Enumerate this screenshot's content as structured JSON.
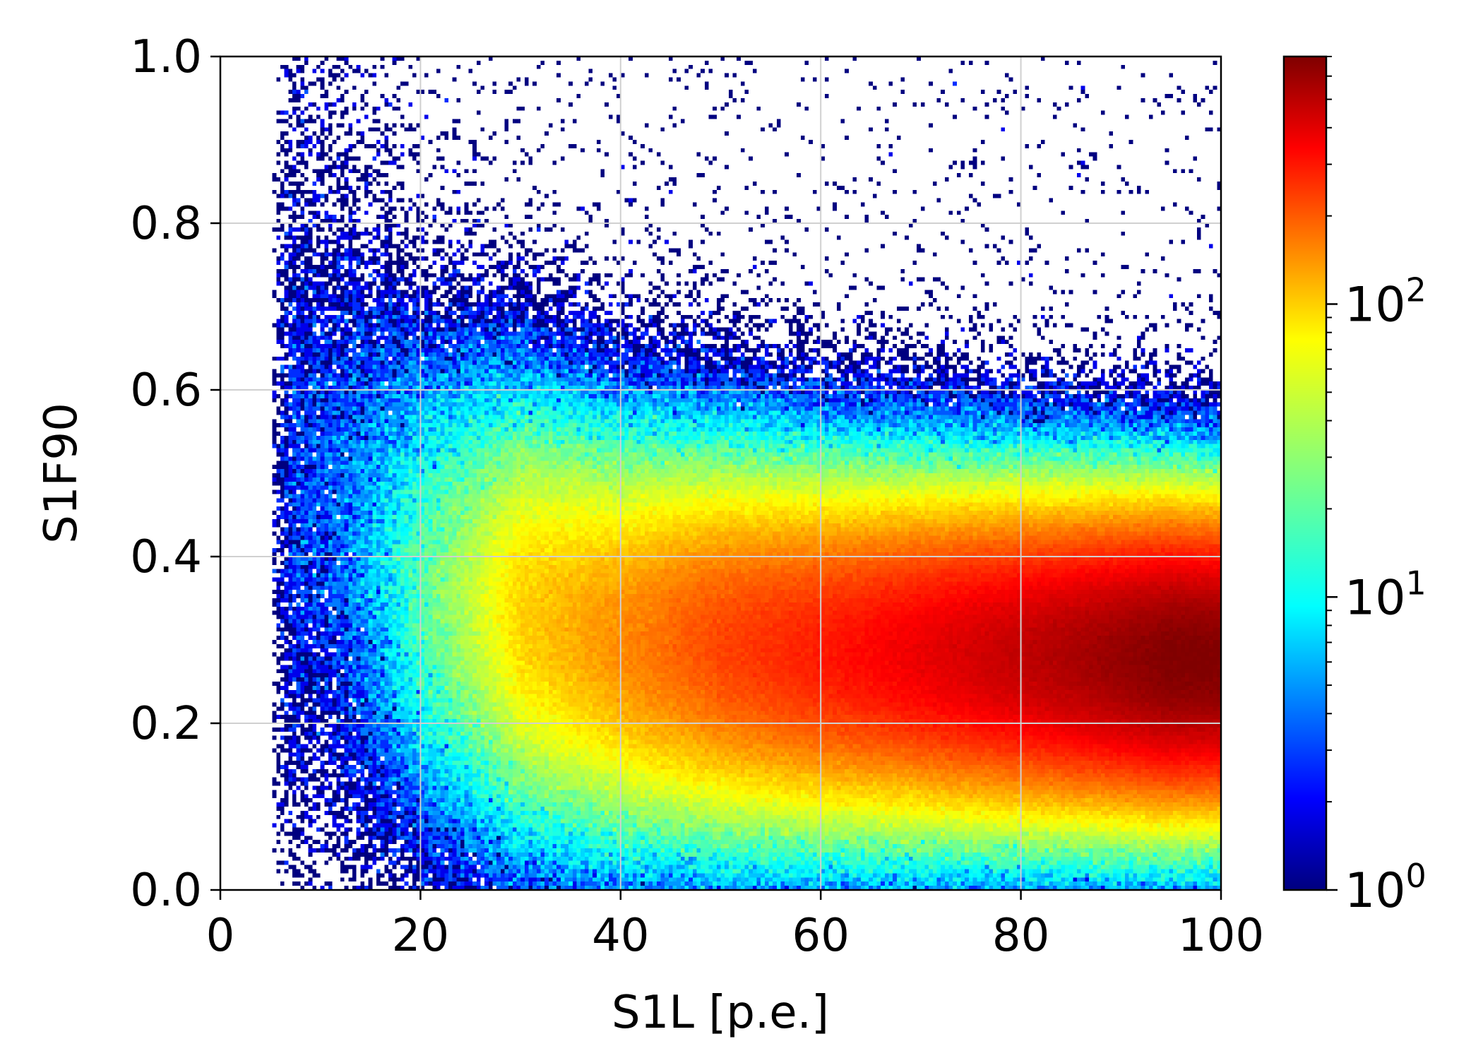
{
  "chart_data": {
    "type": "heatmap",
    "title": "",
    "xlabel": "S1L [p.e.]",
    "ylabel": "S1F90",
    "xlim": [
      0,
      100
    ],
    "ylim": [
      0.0,
      1.0
    ],
    "x_ticks": [
      0,
      20,
      40,
      60,
      80,
      100
    ],
    "x_tick_labels": [
      "0",
      "20",
      "40",
      "60",
      "80",
      "100"
    ],
    "y_ticks": [
      0.0,
      0.2,
      0.4,
      0.6,
      0.8,
      1.0
    ],
    "y_tick_labels": [
      "0.0",
      "0.2",
      "0.4",
      "0.6",
      "0.8",
      "1.0"
    ],
    "grid": true,
    "bins": {
      "x": 250,
      "y": 200
    },
    "colormap": "jet",
    "colorbar": {
      "scale": "log",
      "range": [
        1,
        700
      ],
      "ticks": [
        {
          "value": 1,
          "base": "10",
          "exp": "0"
        },
        {
          "value": 10,
          "base": "10",
          "exp": "1"
        },
        {
          "value": 100,
          "base": "10",
          "exp": "2"
        }
      ]
    },
    "distribution_summary": {
      "band_center_f90": [
        {
          "s1l": 8,
          "f90": 0.45
        },
        {
          "s1l": 20,
          "f90": 0.36
        },
        {
          "s1l": 40,
          "f90": 0.3
        },
        {
          "s1l": 60,
          "f90": 0.285
        },
        {
          "s1l": 80,
          "f90": 0.28
        },
        {
          "s1l": 100,
          "f90": 0.275
        }
      ],
      "peak_counts": [
        {
          "s1l": 10,
          "counts": 3
        },
        {
          "s1l": 20,
          "counts": 20
        },
        {
          "s1l": 30,
          "counts": 80
        },
        {
          "s1l": 50,
          "counts": 200
        },
        {
          "s1l": 70,
          "counts": 350
        },
        {
          "s1l": 95,
          "counts": 700
        }
      ],
      "min_s1l": 5
    }
  }
}
